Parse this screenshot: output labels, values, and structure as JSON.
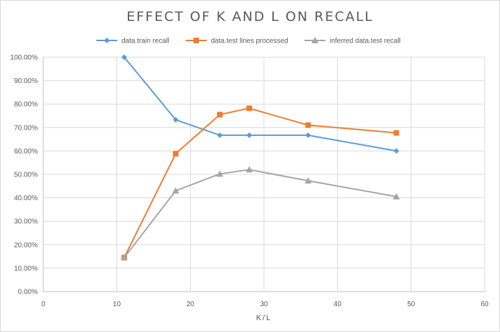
{
  "chart_data": {
    "type": "line",
    "title": "EFFECT OF K AND L ON RECALL",
    "xlabel": "K/L",
    "ylabel": "",
    "xlim": [
      0,
      60
    ],
    "ylim": [
      0,
      100
    ],
    "x_ticks": [
      "0",
      "10",
      "20",
      "30",
      "40",
      "50",
      "60"
    ],
    "y_ticks": [
      "0.00%",
      "10.00%",
      "20.00%",
      "30.00%",
      "40.00%",
      "50.00%",
      "60.00%",
      "70.00%",
      "80.00%",
      "90.00%",
      "100.00%"
    ],
    "grid": true,
    "legend_position": "top",
    "x": [
      11,
      18,
      24,
      28,
      36,
      48
    ],
    "series": [
      {
        "name": "data.train recall",
        "color": "#5b9bd5",
        "marker": "diamond",
        "values": [
          100,
          73.3,
          66.7,
          66.7,
          66.7,
          60
        ]
      },
      {
        "name": "data.test lines processed",
        "color": "#ed7d31",
        "marker": "square",
        "values": [
          14.5,
          58.8,
          75.5,
          78.2,
          71,
          67.7
        ]
      },
      {
        "name": "inferred data.test recall",
        "color": "#a5a5a5",
        "marker": "triangle",
        "values": [
          14.5,
          43,
          50.2,
          52,
          47.3,
          40.5
        ]
      }
    ]
  }
}
